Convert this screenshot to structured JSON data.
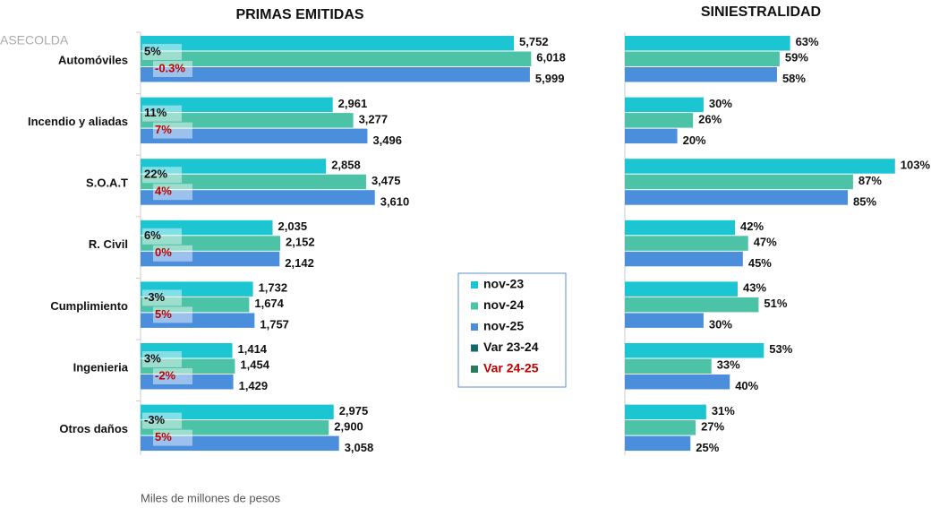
{
  "chart_data": [
    {
      "type": "hbar",
      "title": "PRIMAS EMITIDAS",
      "watermark": "ASECOLDA",
      "note": "Miles de millones de pesos",
      "categories": [
        "Automóviles",
        "Incendio y aliadas",
        "S.O.A.T",
        "R. Civil",
        "Cumplimiento",
        "Ingenieria",
        "Otros daños"
      ],
      "xlim": [
        0,
        6000
      ],
      "series": [
        {
          "name": "nov-23",
          "color": "#1cc5d2",
          "values": [
            5752,
            2961,
            2858,
            2035,
            1732,
            1414,
            2975
          ],
          "value_labels": [
            "5,752",
            "2,961",
            "2,858",
            "2,035",
            "1,732",
            "1,414",
            "2,975"
          ]
        },
        {
          "name": "nov-24",
          "color": "#4cc2a6",
          "values": [
            6018,
            3277,
            3475,
            2152,
            1674,
            1454,
            2900
          ],
          "value_labels": [
            "6,018",
            "3,277",
            "3,475",
            "2,152",
            "1,674",
            "1,454",
            "2,900"
          ]
        },
        {
          "name": "nov-25",
          "color": "#4b8fdc",
          "values": [
            5999,
            3496,
            3610,
            2142,
            1757,
            1429,
            3058
          ],
          "value_labels": [
            "5,999",
            "3,496",
            "3,610",
            "2,142",
            "1,757",
            "1,429",
            "3,058"
          ]
        }
      ],
      "var_series": [
        {
          "name": "Var 23-24",
          "color": "#17696b",
          "text_color": "#111111",
          "values": [
            5,
            11,
            22,
            6,
            -3,
            3,
            -3
          ],
          "value_labels": [
            "5%",
            "11%",
            "22%",
            "6%",
            "-3%",
            "3%",
            "-3%"
          ]
        },
        {
          "name": "Var 24-25",
          "color": "#2a7a5e",
          "text_color": "#c00000",
          "values": [
            -0.3,
            7,
            4,
            0,
            5,
            -2,
            5
          ],
          "value_labels": [
            "-0.3%",
            "7%",
            "4%",
            "0%",
            "5%",
            "-2%",
            "5%"
          ]
        }
      ]
    },
    {
      "type": "hbar",
      "title": "SINIESTRALIDAD",
      "xlim": [
        0,
        100
      ],
      "series": [
        {
          "name": "nov-23",
          "color": "#1cc5d2",
          "values": [
            63,
            30,
            103,
            42,
            43,
            53,
            31
          ],
          "value_labels": [
            "63%",
            "30%",
            "103%",
            "42%",
            "43%",
            "53%",
            "31%"
          ]
        },
        {
          "name": "nov-24",
          "color": "#4cc2a6",
          "values": [
            59,
            26,
            87,
            47,
            51,
            33,
            27
          ],
          "value_labels": [
            "59%",
            "26%",
            "87%",
            "47%",
            "51%",
            "33%",
            "27%"
          ]
        },
        {
          "name": "nov-25",
          "color": "#4b8fdc",
          "values": [
            58,
            20,
            85,
            45,
            30,
            40,
            25
          ],
          "value_labels": [
            "58%",
            "20%",
            "85%",
            "45%",
            "30%",
            "40%",
            "25%"
          ]
        }
      ]
    }
  ]
}
